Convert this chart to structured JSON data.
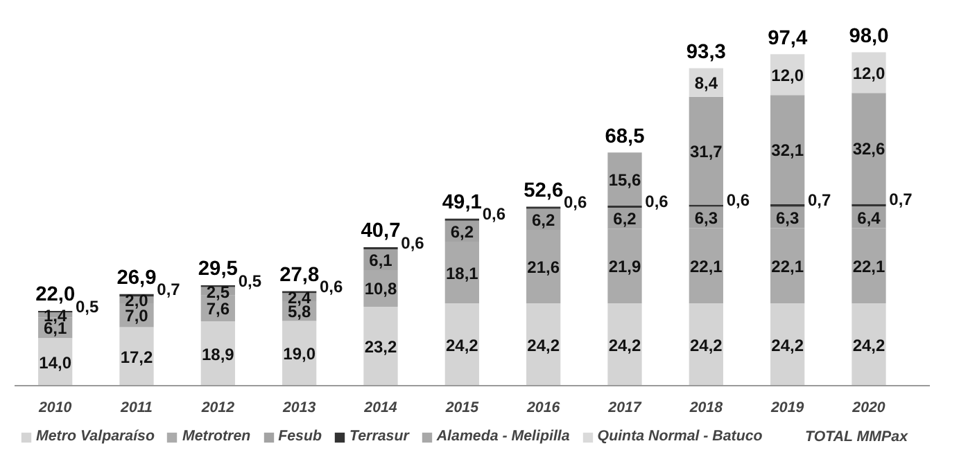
{
  "chart_data": {
    "type": "bar",
    "stacked": true,
    "grid": false,
    "legend": "bottom",
    "categories": [
      "2010",
      "2011",
      "2012",
      "2013",
      "2014",
      "2015",
      "2016",
      "2017",
      "2018",
      "2019",
      "2020"
    ],
    "series": [
      {
        "name": "Metro Valparaíso",
        "color": "#d4d4d4",
        "values": [
          14.0,
          17.2,
          18.9,
          19.0,
          23.2,
          24.2,
          24.2,
          24.2,
          24.2,
          24.2,
          24.2
        ],
        "value_labels": [
          "14,0",
          "17,2",
          "18,9",
          "19,0",
          "23,2",
          "24,2",
          "24,2",
          "24,2",
          "24,2",
          "24,2",
          "24,2"
        ]
      },
      {
        "name": "Metrotren",
        "color": "#ababab",
        "values": [
          6.1,
          7.0,
          7.6,
          5.8,
          10.8,
          18.1,
          21.6,
          21.9,
          22.1,
          22.1,
          22.1
        ],
        "value_labels": [
          "6,1",
          "7,0",
          "7,6",
          "5,8",
          "10,8",
          "18,1",
          "21,6",
          "21,9",
          "22,1",
          "22,1",
          "22,1"
        ]
      },
      {
        "name": "Fesub",
        "color": "#a3a3a3",
        "values": [
          1.4,
          2.0,
          2.5,
          2.4,
          6.1,
          6.2,
          6.2,
          6.2,
          6.3,
          6.3,
          6.4
        ],
        "value_labels": [
          "1,4",
          "2,0",
          "2,5",
          "2,4",
          "6,1",
          "6,2",
          "6,2",
          "6,2",
          "6,3",
          "6,3",
          "6,4"
        ]
      },
      {
        "name": "Terrasur",
        "color": "#333333",
        "values": [
          0.5,
          0.7,
          0.5,
          0.6,
          0.6,
          0.6,
          0.6,
          0.6,
          0.6,
          0.7,
          0.7
        ],
        "value_labels": [
          "0,5",
          "0,7",
          "0,5",
          "0,6",
          "0,6",
          "0,6",
          "0,6",
          "0,6",
          "0,6",
          "0,7",
          "0,7"
        ]
      },
      {
        "name": "Alameda - Melipilla",
        "color": "#a8a8a8",
        "values": [
          null,
          null,
          null,
          null,
          null,
          null,
          null,
          15.6,
          31.7,
          32.1,
          32.6
        ],
        "value_labels": [
          null,
          null,
          null,
          null,
          null,
          null,
          null,
          "15,6",
          "31,7",
          "32,1",
          "32,6"
        ]
      },
      {
        "name": "Quinta Normal - Batuco",
        "color": "#dadada",
        "values": [
          null,
          null,
          null,
          null,
          null,
          null,
          null,
          null,
          8.4,
          12.0,
          12.0
        ],
        "value_labels": [
          null,
          null,
          null,
          null,
          null,
          null,
          null,
          null,
          "8,4",
          "12,0",
          "12,0"
        ]
      }
    ],
    "totals": [
      "22,0",
      "26,9",
      "29,5",
      "27,8",
      "40,7",
      "49,1",
      "52,6",
      "68,5",
      "93,3",
      "97,4",
      "98,0"
    ],
    "annotations": [
      "TOTAL MMPax"
    ]
  }
}
